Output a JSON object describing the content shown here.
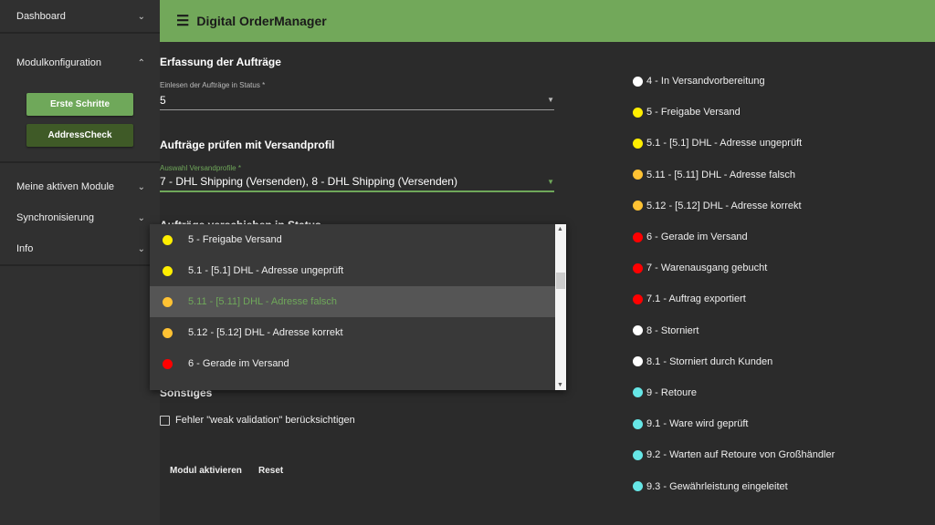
{
  "app_title": "Digital OrderManager",
  "sidebar": {
    "dashboard": "Dashboard",
    "modulkonfiguration": "Modulkonfiguration",
    "buttons": {
      "erste_schritte": "Erste Schritte",
      "addresscheck": "AddressCheck"
    },
    "meine_module": "Meine aktiven Module",
    "synchronisierung": "Synchronisierung",
    "info": "Info"
  },
  "form": {
    "section1": "Erfassung der Aufträge",
    "status_label": "Einlesen der Aufträge in Status *",
    "status_value": "5",
    "section2": "Aufträge prüfen mit Versandprofil",
    "profile_label": "Auswahl Versandprofile *",
    "profile_value": "7 - DHL Shipping (Versenden), 8 - DHL Shipping (Versenden)",
    "section3": "Aufträge verschieben in Status",
    "section4": "Sonstiges",
    "checkbox_label": "Fehler \"weak validation\" berücksichtigen",
    "checkbox_checked": false,
    "activate": "Modul aktivieren",
    "reset": "Reset"
  },
  "dropdown_options": [
    {
      "label": "5 - Freigabe Versand",
      "color": "#ffee00"
    },
    {
      "label": "5.1 - [5.1] DHL - Adresse ungeprüft",
      "color": "#ffee00"
    },
    {
      "label": "5.11 - [5.11] DHL - Adresse falsch",
      "color": "#ffc233",
      "highlighted": true
    },
    {
      "label": "5.12 - [5.12] DHL - Adresse korrekt",
      "color": "#ffc233"
    },
    {
      "label": "6 - Gerade im Versand",
      "color": "#ff0000"
    }
  ],
  "status_list": [
    {
      "label": "4 - In Versandvorbereitung",
      "color": "#ffffff"
    },
    {
      "label": "5 - Freigabe Versand",
      "color": "#ffee00"
    },
    {
      "label": "5.1 - [5.1] DHL - Adresse ungeprüft",
      "color": "#ffee00"
    },
    {
      "label": "5.11 - [5.11] DHL - Adresse falsch",
      "color": "#ffc233"
    },
    {
      "label": "5.12 - [5.12] DHL - Adresse korrekt",
      "color": "#ffc233"
    },
    {
      "label": "6 - Gerade im Versand",
      "color": "#ff0000"
    },
    {
      "label": "7 - Warenausgang gebucht",
      "color": "#ff0000"
    },
    {
      "label": "7.1 - Auftrag exportiert",
      "color": "#ff0000"
    },
    {
      "label": "8 - Storniert",
      "color": "#ffffff"
    },
    {
      "label": "8.1 - Storniert durch Kunden",
      "color": "#ffffff"
    },
    {
      "label": "9 - Retoure",
      "color": "#66e6e6"
    },
    {
      "label": "9.1 - Ware wird geprüft",
      "color": "#66e6e6"
    },
    {
      "label": "9.2 - Warten auf Retoure von Großhändler",
      "color": "#66e6e6"
    },
    {
      "label": "9.3 - Gewährleistung eingeleitet",
      "color": "#66e6e6"
    }
  ],
  "colors": {
    "accent": "#72a85a",
    "button_light": "#6fa85a",
    "button_dark": "#3f5a27"
  }
}
